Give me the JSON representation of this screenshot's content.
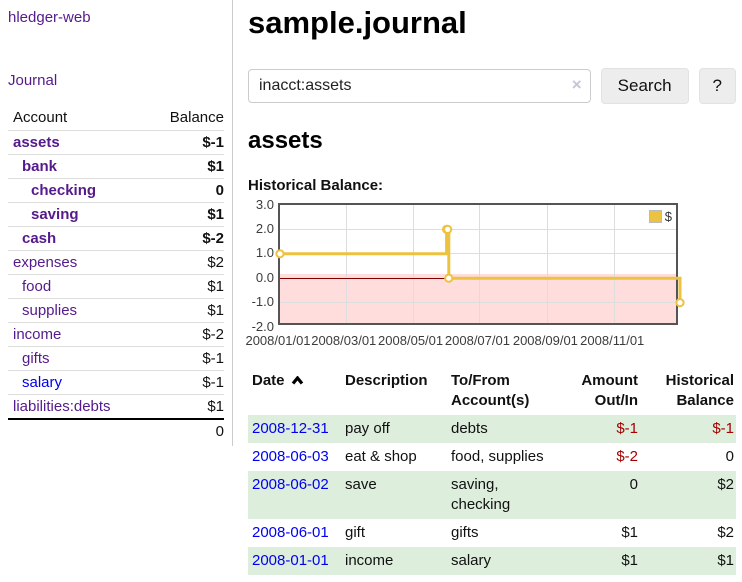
{
  "app_title": "hledger-web",
  "colors": {
    "purple": "#551a8b",
    "blue": "#0000ee",
    "neg-strong": "#a40000",
    "neg-muted": "#b36a6a",
    "stripe": "#ddeedd",
    "gold": "#edc240",
    "pink": "#ffdddd",
    "zero": "#800000"
  },
  "sidebar": {
    "journal_link": "Journal",
    "accounts": {
      "col_account": "Account",
      "col_balance": "Balance",
      "rows": [
        {
          "name": "assets",
          "balance": "$-1",
          "depth": 1,
          "bold": true,
          "bal_neg": "strong"
        },
        {
          "name": "bank",
          "balance": "$1",
          "depth": 2,
          "bold": true
        },
        {
          "name": "checking",
          "balance": "0",
          "depth": 3,
          "bold": true
        },
        {
          "name": "saving",
          "balance": "$1",
          "depth": 3,
          "bold": true
        },
        {
          "name": "cash",
          "balance": "$-2",
          "depth": 2,
          "bold": true,
          "bal_neg": "strong"
        },
        {
          "name": "expenses",
          "balance": "$2",
          "depth": 1
        },
        {
          "name": "food",
          "balance": "$1",
          "depth": 2
        },
        {
          "name": "supplies",
          "balance": "$1",
          "depth": 2
        },
        {
          "name": "income",
          "balance": "$-2",
          "depth": 1,
          "bal_neg": "muted"
        },
        {
          "name": "gifts",
          "balance": "$-1",
          "depth": 2,
          "bal_neg": "muted"
        },
        {
          "name": "salary",
          "balance": "$-1",
          "depth": 2,
          "link_color": "blue",
          "bal_neg": "muted"
        },
        {
          "name": "liabilities:debts",
          "balance": "$1",
          "depth": 1
        }
      ],
      "total": "0"
    }
  },
  "main": {
    "title": "sample.journal",
    "search": {
      "value": "inacct:assets",
      "clear_icon": "×",
      "button_label": "Search",
      "help_label": "?"
    },
    "account_heading": "assets",
    "section_label": "Historical Balance:"
  },
  "chart_data": {
    "type": "line",
    "step": true,
    "title": "Historical Balance",
    "series": [
      {
        "name": "$",
        "color": "#edc240",
        "points": [
          [
            "2008-01-01",
            1
          ],
          [
            "2008-06-01",
            2
          ],
          [
            "2008-06-02",
            2
          ],
          [
            "2008-06-03",
            0
          ],
          [
            "2008-12-31",
            -1
          ]
        ]
      }
    ],
    "x_start_date": "2008-01-01",
    "x_range_days": [
      0,
      365
    ],
    "x_ticks": [
      {
        "label": "2008/01/01",
        "date": "2008-01-01"
      },
      {
        "label": "2008/03/01",
        "date": "2008-03-01"
      },
      {
        "label": "2008/05/01",
        "date": "2008-05-01"
      },
      {
        "label": "2008/07/01",
        "date": "2008-07-01"
      },
      {
        "label": "2008/09/01",
        "date": "2008-09-01"
      },
      {
        "label": "2008/11/01",
        "date": "2008-11-01"
      }
    ],
    "y_ticks": [
      "3.0",
      "2.0",
      "1.0",
      "0.0",
      "-1.0",
      "-2.0"
    ],
    "ylim": [
      -2,
      3
    ],
    "grid": true,
    "legend": {
      "label": "$",
      "position": "top-right"
    },
    "negative_region_fill": "#ffdddd",
    "zero_line_color": "#800000"
  },
  "register": {
    "headers": {
      "date": "Date",
      "description": "Description",
      "accounts": "To/From Account(s)",
      "amount": "Amount Out/In",
      "balance": "Historical Balance"
    },
    "sort": {
      "column": "date",
      "direction": "ascending"
    },
    "rows": [
      {
        "date": "2008-12-31",
        "description": "pay off",
        "accounts": "debts",
        "amount": "$-1",
        "amount_neg": true,
        "balance": "$-1",
        "balance_neg": true
      },
      {
        "date": "2008-06-03",
        "description": "eat & shop",
        "accounts": "food, supplies",
        "amount": "$-2",
        "amount_neg": true,
        "balance": "0"
      },
      {
        "date": "2008-06-02",
        "description": "save",
        "accounts": "saving, checking",
        "amount": "0",
        "balance": "$2"
      },
      {
        "date": "2008-06-01",
        "description": "gift",
        "accounts": "gifts",
        "amount": "$1",
        "balance": "$2"
      },
      {
        "date": "2008-01-01",
        "description": "income",
        "accounts": "salary",
        "amount": "$1",
        "balance": "$1"
      }
    ]
  }
}
